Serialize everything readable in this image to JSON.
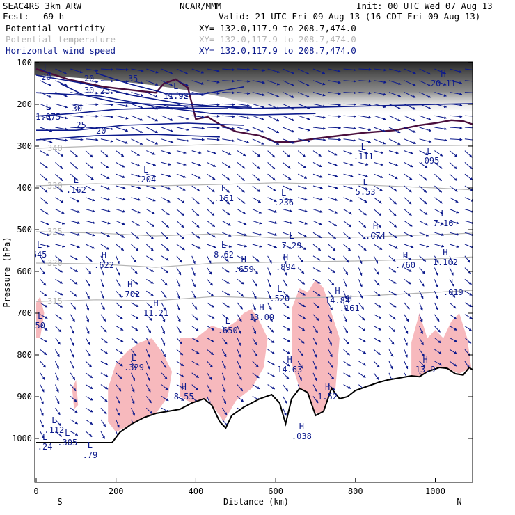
{
  "header": {
    "model": "SEAC4RS  3km ARW",
    "center": "NCAR/MMM",
    "init": "Init: 00 UTC Wed 07 Aug 13",
    "fcst_label": "Fcst:",
    "fcst_value": "69 h",
    "valid": "Valid: 21 UTC Fri 09 Aug 13 (16 CDT Fri 09 Aug 13)"
  },
  "fields": [
    {
      "name": "Potential vorticity",
      "xy": "XY= 132.0,117.9 to 208.7,474.0",
      "color": "#4a0e3c"
    },
    {
      "name": "Potential temperature",
      "xy": "XY= 132.0,117.9 to 208.7,474.0",
      "color": "#b4b4b4"
    },
    {
      "name": "Horizontal wind speed",
      "xy": "XY= 132.0,117.9 to 208.7,474.0",
      "color": "#0c1a8c"
    }
  ],
  "colors": {
    "wind": "#0c1a8c",
    "theta": "#b4b4b4",
    "pv": "#4a0e3c",
    "cloud": "#f7b9bd",
    "terrain": "#000000",
    "shading": "#2a2a2a"
  },
  "chart_data": {
    "type": "cross-section",
    "xlabel": "Distance (km)",
    "ylabel": "Pressure (hPa)",
    "xlim": [
      0,
      1100
    ],
    "ylim": [
      1050,
      100
    ],
    "x_ticks": [
      0,
      200,
      400,
      600,
      800,
      1000
    ],
    "y_ticks": [
      100,
      200,
      300,
      400,
      500,
      600,
      700,
      800,
      900,
      1000
    ],
    "endpoint_labels": {
      "left": "S",
      "right": "N"
    },
    "terrain_profile": [
      [
        0,
        1010
      ],
      [
        40,
        1010
      ],
      [
        100,
        1010
      ],
      [
        190,
        1010
      ],
      [
        210,
        985
      ],
      [
        240,
        965
      ],
      [
        270,
        950
      ],
      [
        300,
        940
      ],
      [
        330,
        935
      ],
      [
        360,
        930
      ],
      [
        390,
        915
      ],
      [
        420,
        905
      ],
      [
        440,
        920
      ],
      [
        460,
        960
      ],
      [
        475,
        975
      ],
      [
        490,
        945
      ],
      [
        520,
        925
      ],
      [
        560,
        905
      ],
      [
        590,
        895
      ],
      [
        610,
        915
      ],
      [
        625,
        965
      ],
      [
        640,
        905
      ],
      [
        660,
        880
      ],
      [
        680,
        890
      ],
      [
        700,
        945
      ],
      [
        720,
        935
      ],
      [
        740,
        880
      ],
      [
        760,
        905
      ],
      [
        780,
        900
      ],
      [
        800,
        885
      ],
      [
        830,
        875
      ],
      [
        860,
        865
      ],
      [
        880,
        860
      ],
      [
        910,
        855
      ],
      [
        940,
        850
      ],
      [
        960,
        852
      ],
      [
        980,
        840
      ],
      [
        1010,
        830
      ],
      [
        1030,
        832
      ],
      [
        1050,
        845
      ],
      [
        1070,
        848
      ],
      [
        1085,
        830
      ],
      [
        1100,
        840
      ]
    ],
    "wind_speed_contours": [
      {
        "label": "20",
        "p": [
          [
            0,
            130
          ],
          [
            120,
            150
          ],
          [
            240,
            178
          ],
          [
            360,
            198
          ],
          [
            520,
            210
          ],
          [
            700,
            207
          ],
          [
            1000,
            200
          ],
          [
            1100,
            198
          ]
        ]
      },
      {
        "label": "25",
        "p": [
          [
            0,
            172
          ],
          [
            160,
            180
          ],
          [
            300,
            205
          ],
          [
            440,
            222
          ],
          [
            560,
            225
          ],
          [
            700,
            222
          ]
        ]
      },
      {
        "label": "30",
        "p": [
          [
            60,
            150
          ],
          [
            120,
            178
          ],
          [
            200,
            195
          ],
          [
            300,
            200
          ],
          [
            400,
            205
          ],
          [
            540,
            207
          ]
        ]
      },
      {
        "label": "35",
        "p": [
          [
            150,
            125
          ],
          [
            230,
            150
          ],
          [
            330,
            175
          ],
          [
            420,
            175
          ],
          [
            520,
            158
          ]
        ]
      },
      {
        "label": "30",
        "p": [
          [
            0,
            228
          ],
          [
            90,
            222
          ],
          [
            200,
            212
          ],
          [
            320,
            208
          ],
          [
            480,
            210
          ]
        ]
      },
      {
        "label": "25",
        "p": [
          [
            0,
            262
          ],
          [
            100,
            262
          ],
          [
            220,
            250
          ],
          [
            380,
            245
          ],
          [
            520,
            250
          ]
        ]
      },
      {
        "label": "20",
        "p": [
          [
            0,
            285
          ],
          [
            150,
            275
          ],
          [
            300,
            272
          ],
          [
            460,
            278
          ]
        ]
      }
    ],
    "theta_contours": [
      {
        "label": "340",
        "p": [
          [
            0,
            305
          ],
          [
            150,
            300
          ],
          [
            300,
            300
          ],
          [
            450,
            296
          ],
          [
            600,
            300
          ],
          [
            800,
            300
          ],
          [
            1100,
            298
          ]
        ]
      },
      {
        "label": "330",
        "p": [
          [
            0,
            395
          ],
          [
            150,
            390
          ],
          [
            300,
            395
          ],
          [
            450,
            392
          ],
          [
            600,
            388
          ],
          [
            800,
            392
          ],
          [
            1000,
            400
          ],
          [
            1100,
            405
          ]
        ]
      },
      {
        "label": "325",
        "p": [
          [
            0,
            505
          ],
          [
            150,
            508
          ],
          [
            300,
            515
          ],
          [
            450,
            510
          ],
          [
            600,
            520
          ],
          [
            800,
            518
          ],
          [
            1000,
            512
          ],
          [
            1100,
            508
          ]
        ]
      },
      {
        "label": "320",
        "p": [
          [
            0,
            580
          ],
          [
            150,
            582
          ],
          [
            300,
            590
          ],
          [
            450,
            580
          ],
          [
            600,
            578
          ],
          [
            800,
            575
          ],
          [
            1000,
            570
          ],
          [
            1100,
            565
          ]
        ]
      },
      {
        "label": "315",
        "p": [
          [
            0,
            672
          ],
          [
            150,
            668
          ],
          [
            300,
            670
          ],
          [
            450,
            660
          ],
          [
            600,
            665
          ],
          [
            800,
            660
          ],
          [
            1000,
            650
          ],
          [
            1100,
            645
          ]
        ]
      }
    ],
    "pv_contour": [
      [
        0,
        115
      ],
      [
        80,
        140
      ],
      [
        170,
        158
      ],
      [
        260,
        168
      ],
      [
        300,
        172
      ],
      [
        320,
        150
      ],
      [
        350,
        140
      ],
      [
        380,
        160
      ],
      [
        400,
        235
      ],
      [
        430,
        230
      ],
      [
        460,
        248
      ],
      [
        500,
        265
      ],
      [
        560,
        275
      ],
      [
        600,
        290
      ],
      [
        640,
        290
      ],
      [
        700,
        282
      ],
      [
        760,
        275
      ],
      [
        820,
        268
      ],
      [
        900,
        262
      ],
      [
        960,
        250
      ],
      [
        1000,
        245
      ],
      [
        1040,
        238
      ],
      [
        1070,
        240
      ],
      [
        1100,
        250
      ]
    ],
    "pressure_labels": [
      {
        "kind": "L",
        "value": "20",
        "x": 25,
        "p": 135
      },
      {
        "kind": "L",
        "value": "11.92",
        "x": 350,
        "p": 180
      },
      {
        "kind": "H",
        "value": "20.11",
        "x": 1020,
        "p": 150
      },
      {
        "kind": "L",
        "value": "1.075",
        "x": 30,
        "p": 230
      },
      {
        "kind": "L",
        "value": ".111",
        "x": 820,
        "p": 325
      },
      {
        "kind": "L",
        "value": ".095",
        "x": 985,
        "p": 335
      },
      {
        "kind": "L",
        "value": ".162",
        "x": 100,
        "p": 405
      },
      {
        "kind": "L",
        "value": ".204",
        "x": 275,
        "p": 380
      },
      {
        "kind": "L",
        "value": ".161",
        "x": 470,
        "p": 425
      },
      {
        "kind": "L",
        "value": ".236",
        "x": 620,
        "p": 435
      },
      {
        "kind": "L",
        "value": "5.53",
        "x": 825,
        "p": 410
      },
      {
        "kind": "L",
        "value": "7.16",
        "x": 1020,
        "p": 485
      },
      {
        "kind": "L",
        "value": "645",
        "x": 8,
        "p": 560
      },
      {
        "kind": "L",
        "value": "7.29",
        "x": 640,
        "p": 538
      },
      {
        "kind": "H",
        "value": ".674",
        "x": 850,
        "p": 515
      },
      {
        "kind": "L",
        "value": "8.62",
        "x": 470,
        "p": 560
      },
      {
        "kind": "H",
        "value": ".622",
        "x": 170,
        "p": 585
      },
      {
        "kind": "H",
        "value": ".659",
        "x": 520,
        "p": 595
      },
      {
        "kind": "H",
        "value": ".894",
        "x": 625,
        "p": 590
      },
      {
        "kind": "H",
        "value": ".760",
        "x": 925,
        "p": 585
      },
      {
        "kind": "H",
        "value": "1.102",
        "x": 1025,
        "p": 578
      },
      {
        "kind": "H",
        "value": ".702",
        "x": 235,
        "p": 655
      },
      {
        "kind": "L",
        "value": ".520",
        "x": 610,
        "p": 665
      },
      {
        "kind": "H",
        "value": "14.84",
        "x": 755,
        "p": 670
      },
      {
        "kind": "H",
        "value": ".161",
        "x": 785,
        "p": 688
      },
      {
        "kind": "L",
        "value": ".019",
        "x": 1045,
        "p": 650
      },
      {
        "kind": "H",
        "value": "11.21",
        "x": 300,
        "p": 700
      },
      {
        "kind": "H",
        "value": "13.09",
        "x": 565,
        "p": 710
      },
      {
        "kind": "L",
        "value": ".650",
        "x": 480,
        "p": 742
      },
      {
        "kind": "L",
        "value": "50",
        "x": 10,
        "p": 730
      },
      {
        "kind": "L",
        "value": ".329",
        "x": 245,
        "p": 830
      },
      {
        "kind": "H",
        "value": "14.63",
        "x": 635,
        "p": 835
      },
      {
        "kind": "H",
        "value": "13.9",
        "x": 975,
        "p": 835
      },
      {
        "kind": "H",
        "value": "8.55",
        "x": 370,
        "p": 900
      },
      {
        "kind": "L",
        "value": ".112",
        "x": 45,
        "p": 980
      },
      {
        "kind": "L",
        "value": ".305",
        "x": 78,
        "p": 1010
      },
      {
        "kind": "L",
        "value": ".24",
        "x": 22,
        "p": 1020
      },
      {
        "kind": "L",
        "value": ".79",
        "x": 135,
        "p": 1040
      },
      {
        "kind": "H",
        "value": "1.52",
        "x": 730,
        "p": 900
      },
      {
        "kind": "H",
        "value": ".038",
        "x": 665,
        "p": 995
      }
    ]
  }
}
